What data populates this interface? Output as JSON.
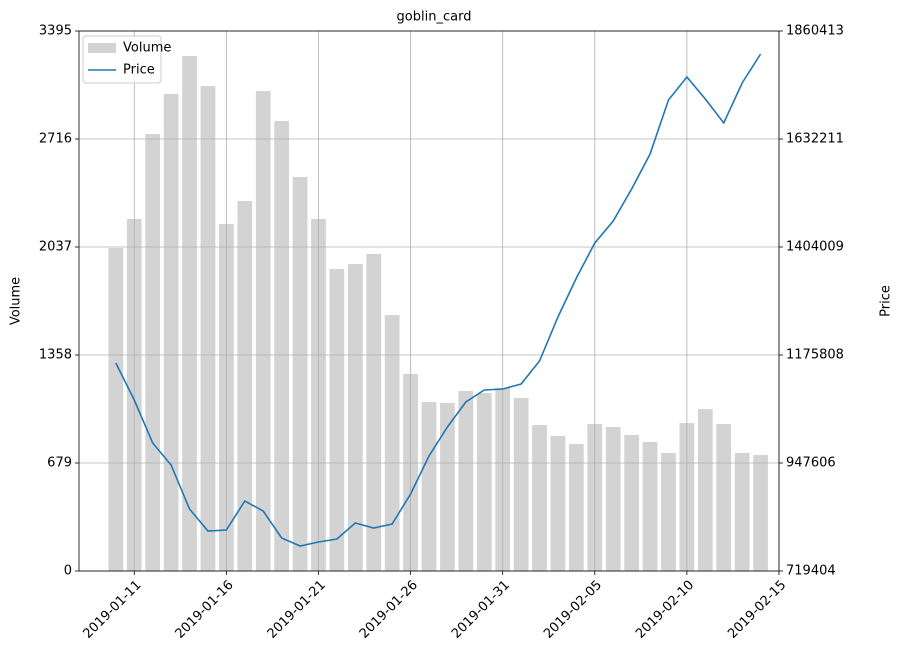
{
  "chart_data": {
    "type": "bar_line",
    "title": "goblin_card",
    "ylabel": "Volume",
    "y2label": "Price",
    "x": [
      "2019-01-10",
      "2019-01-11",
      "2019-01-12",
      "2019-01-13",
      "2019-01-14",
      "2019-01-15",
      "2019-01-16",
      "2019-01-17",
      "2019-01-18",
      "2019-01-19",
      "2019-01-20",
      "2019-01-21",
      "2019-01-22",
      "2019-01-23",
      "2019-01-24",
      "2019-01-25",
      "2019-01-26",
      "2019-01-27",
      "2019-01-28",
      "2019-01-29",
      "2019-01-30",
      "2019-01-31",
      "2019-02-01",
      "2019-02-02",
      "2019-02-03",
      "2019-02-04",
      "2019-02-05",
      "2019-02-06",
      "2019-02-07",
      "2019-02-08",
      "2019-02-09",
      "2019-02-10",
      "2019-02-11",
      "2019-02-12",
      "2019-02-13",
      "2019-02-14"
    ],
    "series": [
      {
        "name": "Volume",
        "type": "bar",
        "color": "#d3d3d3",
        "values": [
          2031,
          2213,
          2747,
          2999,
          3238,
          3049,
          2182,
          2326,
          3018,
          2829,
          2477,
          2213,
          1899,
          1930,
          1993,
          1609,
          1239,
          1062,
          1056,
          1132,
          1119,
          1150,
          1088,
          918,
          849,
          798,
          924,
          905,
          855,
          811,
          742,
          930,
          1018,
          924,
          742,
          729
        ]
      },
      {
        "name": "Price",
        "type": "line",
        "axis": "y2",
        "color": "#1f77b4",
        "values": [
          1158908,
          1080727,
          989868,
          943382,
          850410,
          803924,
          806037,
          867314,
          846184,
          789133,
          772229,
          780681,
          787020,
          820828,
          810263,
          818715,
          882105,
          962399,
          1023676,
          1076501,
          1101857,
          1103970,
          1114535,
          1163134,
          1256106,
          1338513,
          1412468,
          1458954,
          1526570,
          1600525,
          1714627,
          1763226,
          1716740,
          1666028,
          1750548,
          1811825
        ]
      }
    ],
    "xlim": [
      "2019-01-08",
      "2019-02-15"
    ],
    "xticks": [
      "2019-01-11",
      "2019-01-16",
      "2019-01-21",
      "2019-01-26",
      "2019-01-31",
      "2019-02-05",
      "2019-02-10",
      "2019-02-15"
    ],
    "ylim": [
      0,
      3395
    ],
    "yticks": [
      0,
      679,
      1358,
      2037,
      2716,
      3395
    ],
    "y2lim": [
      719404,
      1860413
    ],
    "y2ticks": [
      719404,
      947606,
      1175808,
      1404009,
      1632211,
      1860413
    ],
    "grid": true,
    "legend": "upper left"
  }
}
